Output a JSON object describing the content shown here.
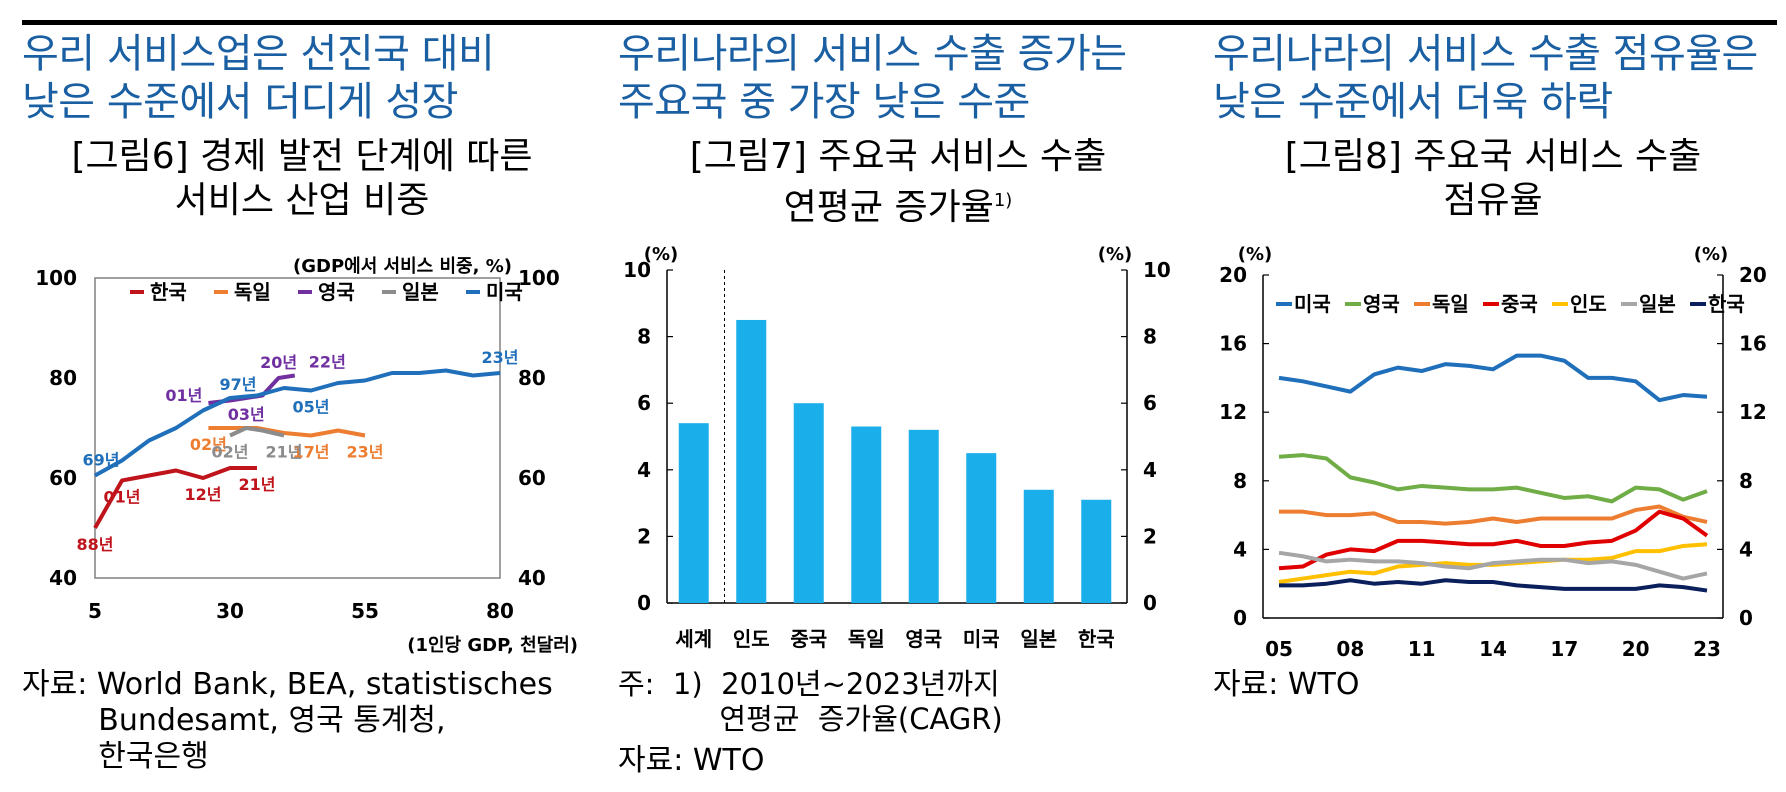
{
  "headlines": [
    "우리  서비스업은  선진국  대비\n낮은 수준에서 더디게 성장",
    "우리나라의 서비스 수출 증가는\n주요국 중 가장 낮은 수준",
    "우리나라의 서비스 수출 점유율은\n낮은 수준에서 더욱 하락"
  ],
  "fig6": {
    "title": "[그림6] 경제 발전 단계에 따른\n서비스 산업 비중",
    "unit_left": "(GDP에서 서비스 비중, %)",
    "xlabel": "(1인당 GDP, 천달러)",
    "source": "자료: World Bank, BEA, statistisches\n        Bundesamt, 영국 통계청,\n        한국은행",
    "chart_data": {
      "type": "line",
      "xlim": [
        5,
        80
      ],
      "ylim": [
        40,
        100
      ],
      "x_ticks": [
        "5",
        "30",
        "55",
        "80"
      ],
      "y_ticks": [
        "40",
        "60",
        "80",
        "100"
      ],
      "legend": [
        "한국",
        "독일",
        "영국",
        "일본",
        "미국"
      ],
      "series": [
        {
          "name": "한국",
          "color": "#c0141c",
          "x": [
            5,
            10,
            15,
            20,
            25,
            30,
            35
          ],
          "y": [
            50,
            59.5,
            60.5,
            61.5,
            60,
            62,
            62
          ],
          "labels": [
            {
              "text": "88년",
              "i": 0,
              "pos": "below"
            },
            {
              "text": "01년",
              "i": 1,
              "pos": "below"
            },
            {
              "text": "12년",
              "i": 4,
              "pos": "below"
            },
            {
              "text": "21년",
              "i": 6,
              "pos": "below"
            }
          ]
        },
        {
          "name": "독일",
          "color": "#ed7d31",
          "x": [
            26,
            30,
            35,
            40,
            45,
            50,
            55
          ],
          "y": [
            70,
            70,
            70,
            69,
            68.5,
            69.5,
            68.5
          ],
          "labels": [
            {
              "text": "02년",
              "i": 0,
              "pos": "below"
            },
            {
              "text": "17년",
              "i": 4,
              "pos": "below"
            },
            {
              "text": "23년",
              "i": 6,
              "pos": "below"
            }
          ]
        },
        {
          "name": "영국",
          "color": "#7030a0",
          "x": [
            26,
            30,
            33,
            36,
            39,
            42
          ],
          "y": [
            75,
            75.5,
            76,
            76.5,
            80,
            80.5
          ],
          "labels": [
            {
              "text": "01년",
              "i": 0,
              "pos": "left"
            },
            {
              "text": "03년",
              "i": 2,
              "pos": "below"
            },
            {
              "text": "20년",
              "i": 4,
              "pos": "above"
            },
            {
              "text": "22년",
              "i": 5,
              "pos": "above-right"
            }
          ]
        },
        {
          "name": "일본",
          "color": "#8c8c8c",
          "x": [
            30,
            33,
            36,
            40
          ],
          "y": [
            68.5,
            70,
            69.5,
            68.5
          ],
          "labels": [
            {
              "text": "02년",
              "i": 0,
              "pos": "below"
            },
            {
              "text": "21년",
              "i": 3,
              "pos": "below"
            }
          ]
        },
        {
          "name": "미국",
          "color": "#1f6fba",
          "x": [
            5,
            10,
            15,
            20,
            25,
            30,
            35,
            40,
            45,
            50,
            55,
            60,
            65,
            70,
            75,
            80
          ],
          "y": [
            60.5,
            63.5,
            67.5,
            70,
            73.5,
            76,
            76.5,
            78,
            77.5,
            79,
            79.5,
            81,
            81,
            81.5,
            80.5,
            81
          ],
          "labels": [
            {
              "text": "69년",
              "i": 0,
              "pos": "above"
            },
            {
              "text": "97년",
              "i": 5,
              "pos": "above-left"
            },
            {
              "text": "05년",
              "i": 8,
              "pos": "below"
            },
            {
              "text": "23년",
              "i": 15,
              "pos": "above"
            }
          ]
        }
      ]
    }
  },
  "fig7": {
    "title": "[그림7] 주요국 서비스 수출\n연평균 증가율",
    "title_sup": "1)",
    "unit_left": "(%)",
    "unit_right": "(%)",
    "note": "주:  1)  2010년~2023년까지\n           연평균  증가율(CAGR)",
    "source": "자료:  WTO",
    "chart_data": {
      "type": "bar",
      "categories": [
        "세계",
        "인도",
        "중국",
        "독일",
        "영국",
        "미국",
        "일본",
        "한국"
      ],
      "values": [
        5.4,
        8.5,
        6.0,
        5.3,
        5.2,
        4.5,
        3.4,
        3.1
      ],
      "ylim": [
        0,
        10
      ],
      "y_ticks": [
        "0",
        "2",
        "4",
        "6",
        "8",
        "10"
      ],
      "bar_color": "#1aaeea"
    }
  },
  "fig8": {
    "title": "[그림8] 주요국 서비스 수출\n점유율",
    "unit_left": "(%)",
    "unit_right": "(%)",
    "source": "자료:  WTO",
    "chart_data": {
      "type": "line",
      "x": [
        2005,
        2006,
        2007,
        2008,
        2009,
        2010,
        2011,
        2012,
        2013,
        2014,
        2015,
        2016,
        2017,
        2018,
        2019,
        2020,
        2021,
        2022,
        2023
      ],
      "x_ticks": [
        "05",
        "08",
        "11",
        "14",
        "17",
        "20",
        "23"
      ],
      "ylim": [
        0,
        20
      ],
      "y_ticks": [
        "0",
        "4",
        "8",
        "12",
        "16",
        "20"
      ],
      "legend": [
        "미국",
        "영국",
        "독일",
        "중국",
        "인도",
        "일본",
        "한국"
      ],
      "series": [
        {
          "name": "미국",
          "color": "#1f6fba",
          "values": [
            14.0,
            13.8,
            13.5,
            13.2,
            14.2,
            14.6,
            14.4,
            14.8,
            14.7,
            14.5,
            15.3,
            15.3,
            15.0,
            14.0,
            14.0,
            13.8,
            12.7,
            13.0,
            12.9
          ]
        },
        {
          "name": "영국",
          "color": "#70ad47",
          "values": [
            9.4,
            9.5,
            9.3,
            8.2,
            7.9,
            7.5,
            7.7,
            7.6,
            7.5,
            7.5,
            7.6,
            7.3,
            7.0,
            7.1,
            6.8,
            7.6,
            7.5,
            6.9,
            7.4
          ]
        },
        {
          "name": "독일",
          "color": "#ed7d31",
          "values": [
            6.2,
            6.2,
            6.0,
            6.0,
            6.1,
            5.6,
            5.6,
            5.5,
            5.6,
            5.8,
            5.6,
            5.8,
            5.8,
            5.8,
            5.8,
            6.3,
            6.5,
            5.9,
            5.6
          ]
        },
        {
          "name": "중국",
          "color": "#e00000",
          "values": [
            2.9,
            3.0,
            3.7,
            4.0,
            3.9,
            4.5,
            4.5,
            4.4,
            4.3,
            4.3,
            4.5,
            4.2,
            4.2,
            4.4,
            4.5,
            5.1,
            6.2,
            5.8,
            4.8
          ]
        },
        {
          "name": "인도",
          "color": "#ffc000",
          "values": [
            2.1,
            2.3,
            2.5,
            2.7,
            2.6,
            3.0,
            3.1,
            3.2,
            3.1,
            3.1,
            3.2,
            3.3,
            3.4,
            3.4,
            3.5,
            3.9,
            3.9,
            4.2,
            4.3
          ]
        },
        {
          "name": "일본",
          "color": "#a6a6a6",
          "values": [
            3.8,
            3.6,
            3.3,
            3.4,
            3.3,
            3.3,
            3.2,
            3.0,
            2.9,
            3.2,
            3.3,
            3.4,
            3.4,
            3.2,
            3.3,
            3.1,
            2.7,
            2.3,
            2.6
          ]
        },
        {
          "name": "한국",
          "color": "#0a1f5c",
          "values": [
            1.9,
            1.9,
            2.0,
            2.2,
            2.0,
            2.1,
            2.0,
            2.2,
            2.1,
            2.1,
            1.9,
            1.8,
            1.7,
            1.7,
            1.7,
            1.7,
            1.9,
            1.8,
            1.6
          ]
        }
      ]
    }
  }
}
